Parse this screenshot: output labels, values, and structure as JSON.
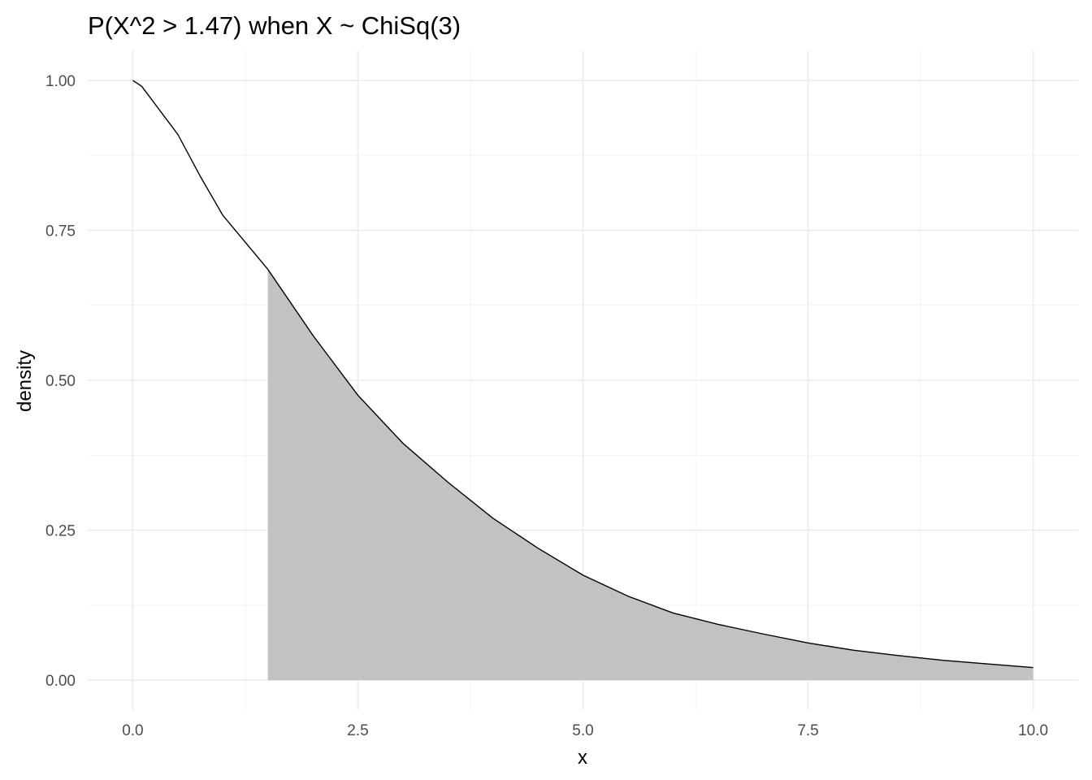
{
  "chart_data": {
    "type": "area",
    "title": "P(X^2 > 1.47) when X ~ ChiSq(3)",
    "xlabel": "x",
    "ylabel": "density",
    "xlim": [
      -0.5,
      10.5
    ],
    "ylim": [
      -0.05,
      1.05
    ],
    "x_ticks": [
      0,
      2.5,
      5,
      7.5,
      10
    ],
    "x_tick_labels": [
      "0.0",
      "2.5",
      "5.0",
      "7.5",
      "10.0"
    ],
    "y_ticks": [
      0,
      0.25,
      0.5,
      0.75,
      1
    ],
    "y_tick_labels": [
      "0.00",
      "0.25",
      "0.50",
      "0.75",
      "1.00"
    ],
    "grid": true,
    "series": [
      {
        "x": [
          0,
          0.1,
          0.2,
          0.3,
          0.5,
          0.75,
          1.0,
          1.25,
          1.5,
          2.0,
          2.5,
          3.0,
          3.5,
          4.0,
          4.5,
          5.0,
          5.5,
          6.0,
          6.5,
          7.0,
          7.5,
          8.0,
          8.5,
          9.0,
          9.5,
          10.0
        ],
        "y": [
          1.0,
          0.99,
          0.97,
          0.95,
          0.91,
          0.84,
          0.775,
          0.73,
          0.685,
          0.575,
          0.475,
          0.395,
          0.33,
          0.27,
          0.22,
          0.175,
          0.14,
          0.112,
          0.093,
          0.077,
          0.062,
          0.05,
          0.041,
          0.033,
          0.027,
          0.021
        ]
      }
    ],
    "shaded_region": {
      "from": 1.5,
      "to": 10.0,
      "fill": "#c2c2c2"
    },
    "line_color": "#000000"
  }
}
